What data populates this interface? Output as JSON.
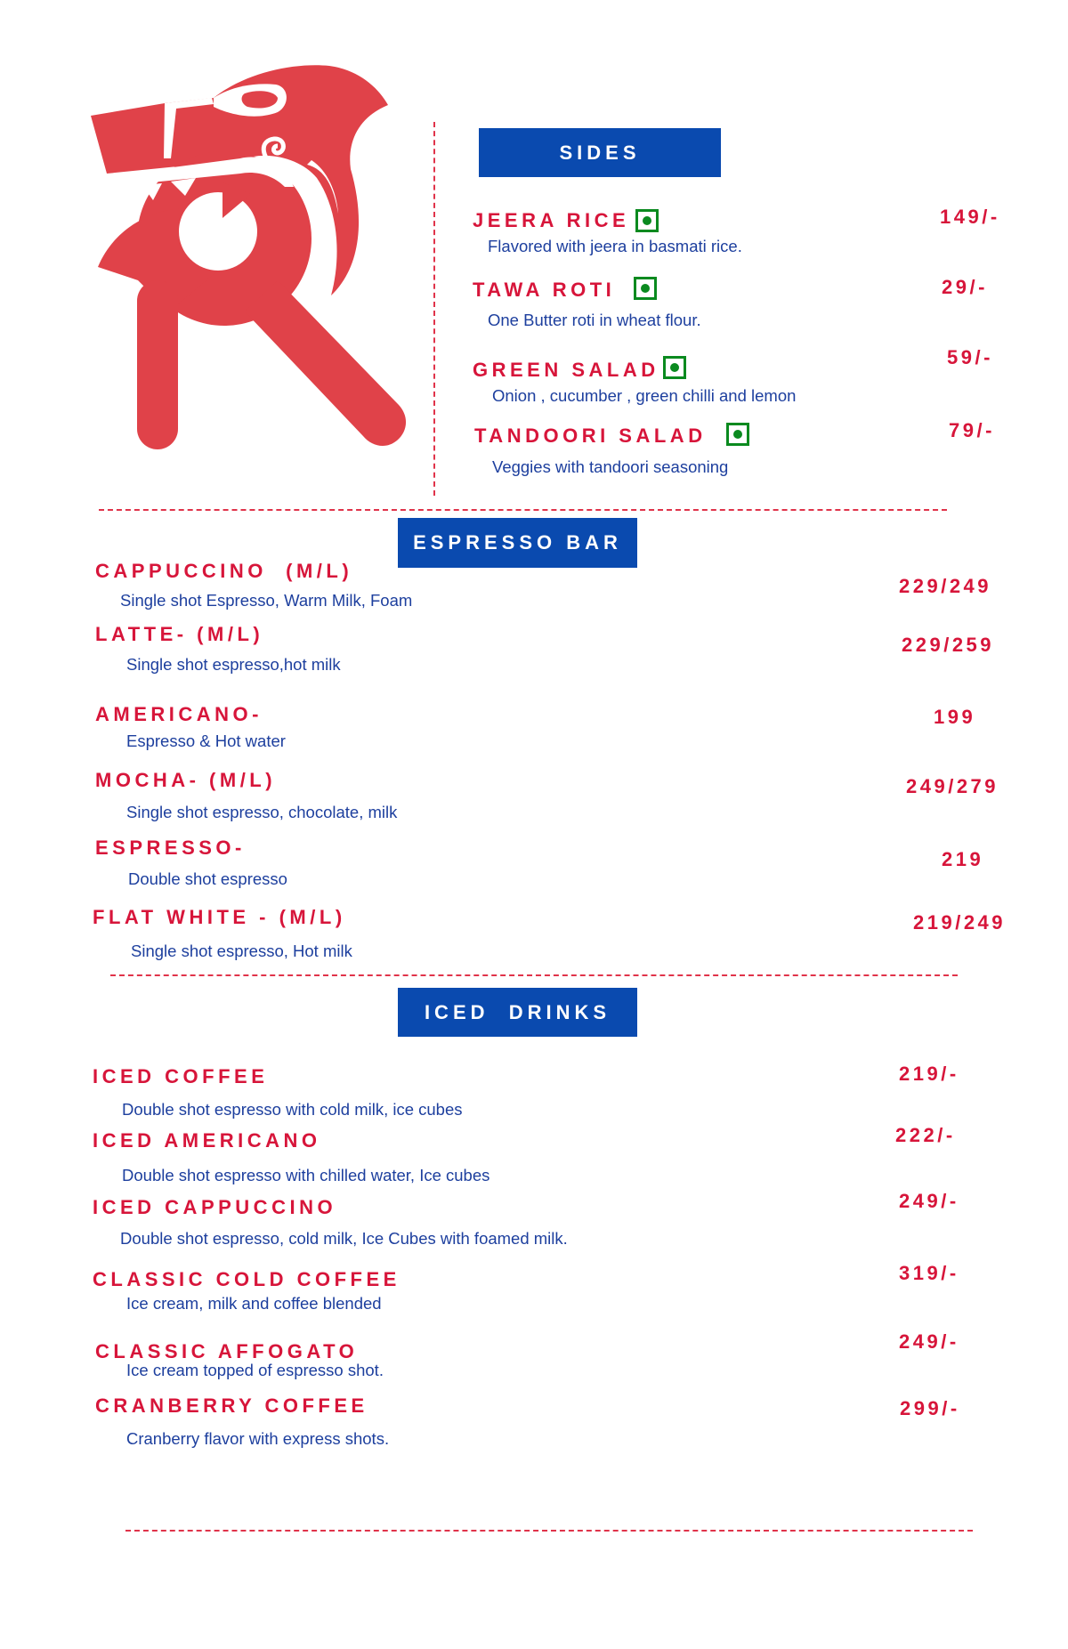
{
  "colors": {
    "accent_red": "#d7153a",
    "header_blue": "#0a4aaf",
    "desc_blue": "#1d3f9e",
    "veg_green": "#0a8a1f",
    "logo_red": "#e04249"
  },
  "logo": {
    "icon": "tribal-r-logo"
  },
  "sides": {
    "title": "SIDES",
    "items": [
      {
        "name": "JEERA RICE",
        "desc": "Flavored with jeera in basmati rice.",
        "price": "149/-",
        "veg": true
      },
      {
        "name": "TAWA ROTI",
        "desc": "One Butter roti in wheat flour.",
        "price": "29/-",
        "veg": true
      },
      {
        "name": "GREEN SALAD",
        "desc": "Onion , cucumber , green chilli and lemon",
        "price": "59/-",
        "veg": true
      },
      {
        "name": "TANDOORI SALAD",
        "desc": "Veggies with tandoori seasoning",
        "price": "79/-",
        "veg": true
      }
    ]
  },
  "espresso": {
    "title": "ESPRESSO BAR",
    "items": [
      {
        "name": "CAPPUCCINO  (M/L)",
        "desc": "Single shot Espresso, Warm Milk, Foam",
        "price": "229/249"
      },
      {
        "name": "LATTE- (M/L)",
        "desc": "Single shot espresso,hot milk",
        "price": "229/259"
      },
      {
        "name": "AMERICANO-",
        "desc": "Espresso & Hot water",
        "price": "199"
      },
      {
        "name": "MOCHA- (M/L)",
        "desc": "Single shot espresso, chocolate, milk",
        "price": "249/279"
      },
      {
        "name": "ESPRESSO-",
        "desc": "Double shot espresso",
        "price": "219"
      },
      {
        "name": "FLAT WHITE - (M/L)",
        "desc": "Single shot espresso, Hot milk",
        "price": "219/249"
      }
    ]
  },
  "iced": {
    "title": "ICED  DRINKS",
    "items": [
      {
        "name": "ICED COFFEE",
        "desc": "Double shot espresso with cold milk, ice cubes",
        "price": "219/-"
      },
      {
        "name": "ICED AMERICANO",
        "desc": "Double shot espresso with chilled water, Ice cubes",
        "price": "222/-"
      },
      {
        "name": "ICED CAPPUCCINO",
        "desc": "Double shot espresso, cold milk, Ice Cubes with foamed milk.",
        "price": "249/-"
      },
      {
        "name": "CLASSIC COLD COFFEE",
        "desc": "Ice cream, milk and coffee blended",
        "price": "319/-"
      },
      {
        "name": "CLASSIC AFFOGATO",
        "desc": "Ice cream topped of espresso shot.",
        "price": "249/-"
      },
      {
        "name": "CRANBERRY COFFEE",
        "desc": "Cranberry flavor with express shots.",
        "price": "299/-"
      }
    ]
  }
}
